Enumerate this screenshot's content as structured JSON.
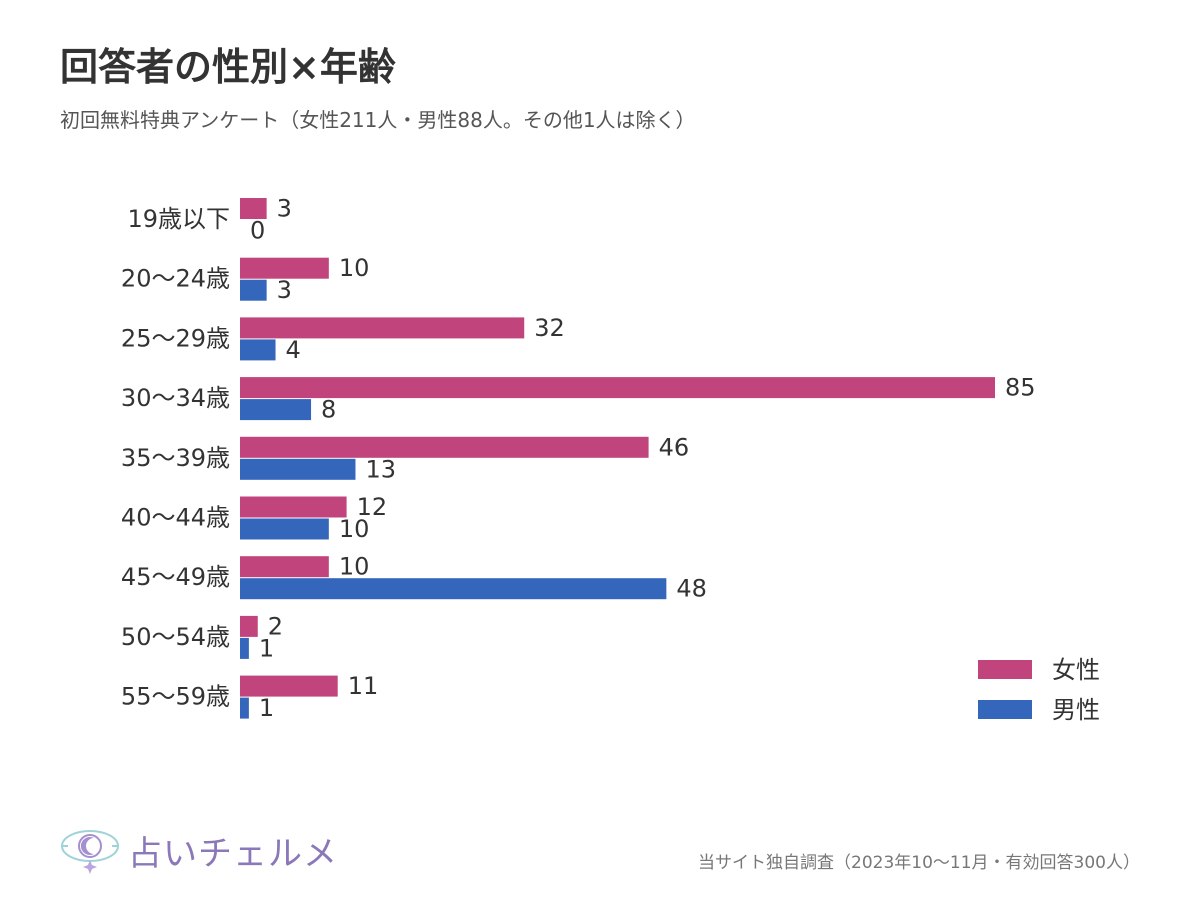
{
  "title": "回答者の性別×年齢",
  "subtitle": "初回無料特典アンケート（女性211人・男性88人。その他1人は除く）",
  "source": "当サイト独自調査（2023年10〜11月・有効回答300人）",
  "logo": {
    "text": "占いチェルメ",
    "icon": "eye-moon-logo-icon"
  },
  "colors": {
    "female": "#c2447c",
    "male": "#3466bb"
  },
  "chart_data": {
    "type": "bar",
    "orientation": "horizontal",
    "categories": [
      "19歳以下",
      "20〜24歳",
      "25〜29歳",
      "30〜34歳",
      "35〜39歳",
      "40〜44歳",
      "45〜49歳",
      "50〜54歳",
      "55〜59歳"
    ],
    "series": [
      {
        "name": "女性",
        "values": [
          3,
          10,
          32,
          85,
          46,
          12,
          10,
          2,
          11
        ]
      },
      {
        "name": "男性",
        "values": [
          0,
          3,
          4,
          8,
          13,
          10,
          48,
          1,
          1
        ]
      }
    ],
    "xlim": [
      0,
      85
    ],
    "grid": false,
    "legend_position": "bottom-right",
    "data_labels": true
  }
}
